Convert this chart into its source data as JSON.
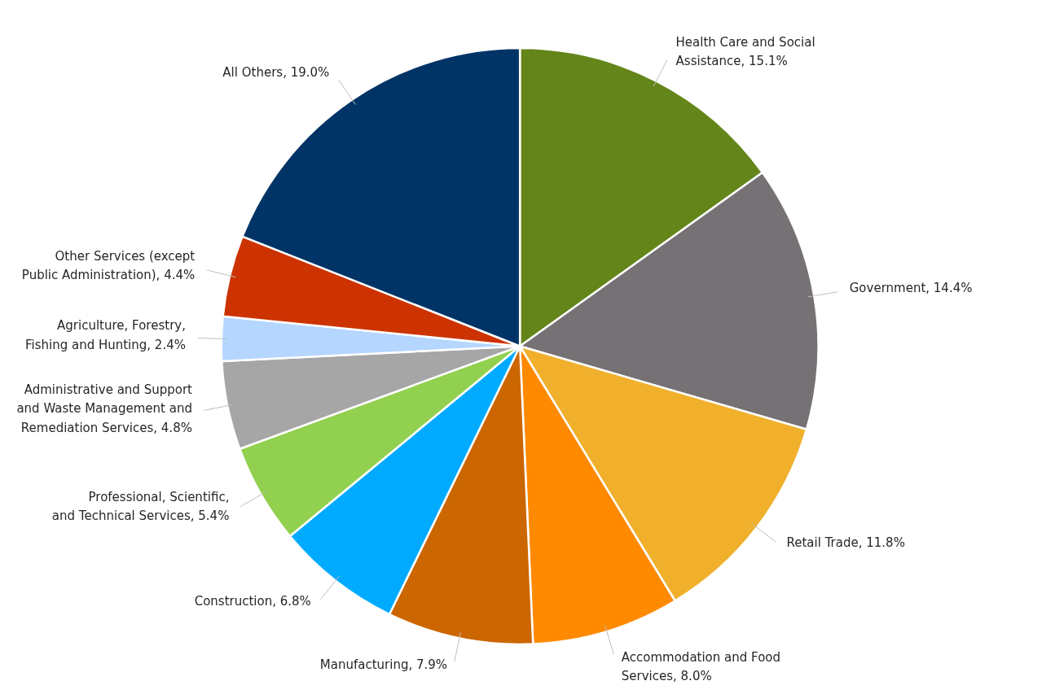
{
  "chart_data": {
    "type": "pie",
    "categories": [
      "Health Care and Social Assistance",
      "Government",
      "Retail Trade",
      "Accommodation and Food Services",
      "Manufacturing",
      "Construction",
      "Professional, Scientific, and Technical Services",
      "Administrative and Support and Waste Management and Remediation Services",
      "Agriculture, Forestry, Fishing and Hunting",
      "Other Services (except Public Administration)",
      "All Others"
    ],
    "values": [
      15.1,
      14.4,
      11.8,
      8.0,
      7.9,
      6.8,
      5.4,
      4.8,
      2.4,
      4.4,
      19.0
    ],
    "value_labels": [
      "15.1%",
      "14.4%",
      "11.8%",
      "8.0%",
      "7.9%",
      "6.8%",
      "5.4%",
      "4.8%",
      "2.4%",
      "4.4%",
      "19.0%"
    ],
    "colors": [
      "#63851a",
      "#767174",
      "#f0b02c",
      "#ff8a00",
      "#cc6600",
      "#00aaff",
      "#92d050",
      "#a6a6a6",
      "#b4d6ff",
      "#cc3300",
      "#003366"
    ]
  }
}
